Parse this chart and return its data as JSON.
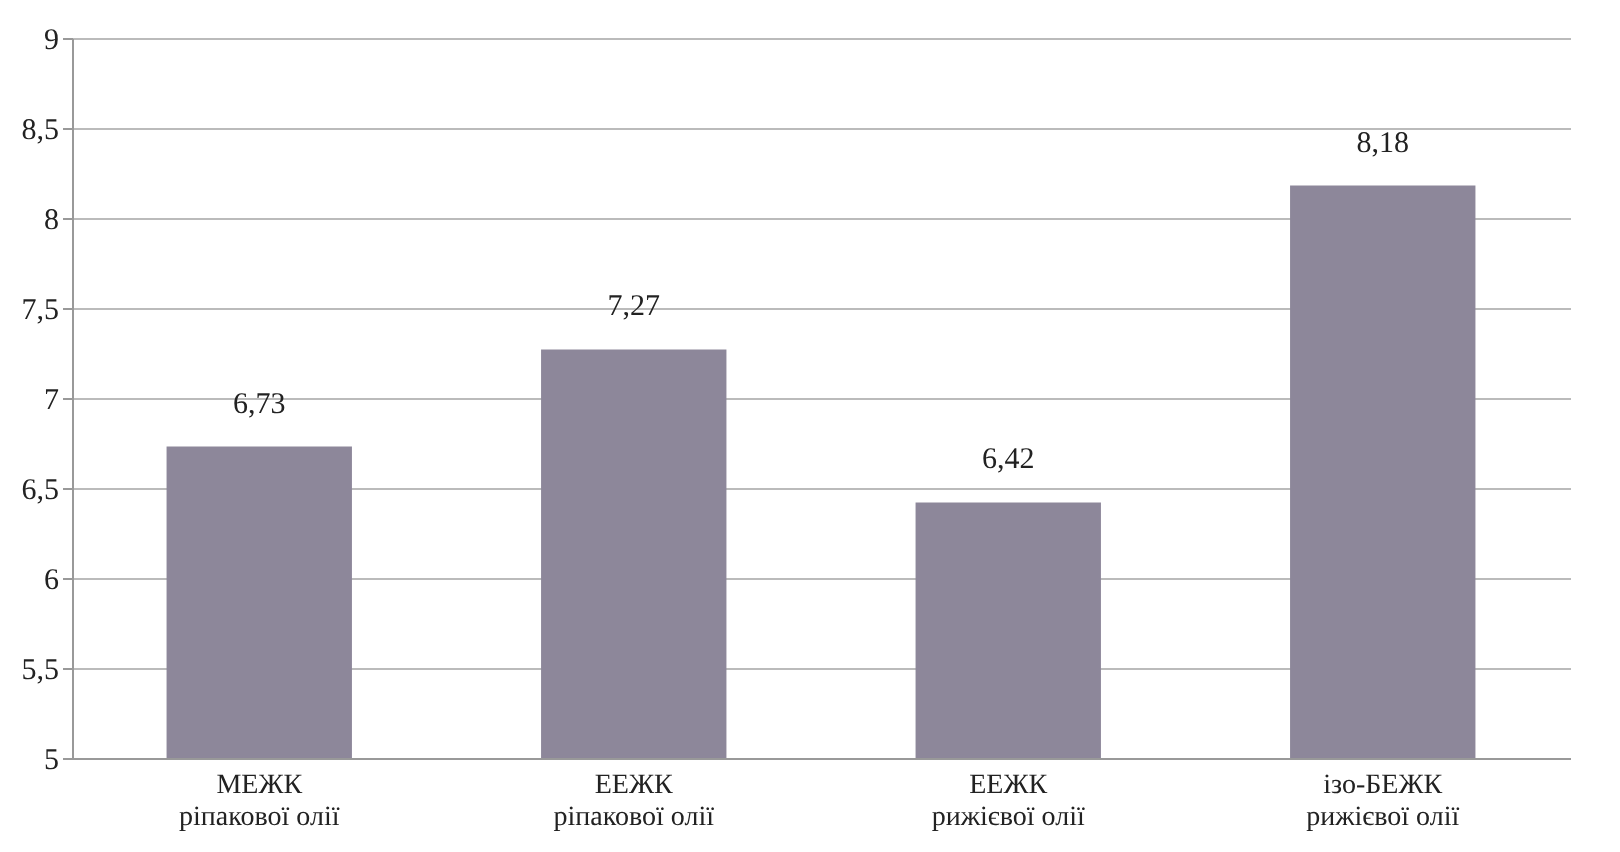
{
  "chart_data": {
    "type": "bar",
    "categories": [
      "МЕЖК ріпакової олії",
      "ЕЕЖК ріпакової олії",
      "ЕЕЖК рижієвої олії",
      "ізо-БЕЖК рижієвої олії"
    ],
    "values": [
      6.73,
      7.27,
      6.42,
      8.18
    ],
    "value_labels": [
      "6,73",
      "7,27",
      "6,42",
      "8,18"
    ],
    "color": "#8d879a",
    "ylim": [
      5,
      9
    ],
    "yticks": [
      5,
      {
        "value": 5.5,
        "label": "5,5"
      },
      6,
      {
        "value": 6.5,
        "label": "6,5"
      },
      7,
      {
        "value": 7.5,
        "label": "7,5"
      },
      8,
      {
        "value": 8.5,
        "label": "8,5"
      },
      9
    ],
    "grid": "y"
  }
}
